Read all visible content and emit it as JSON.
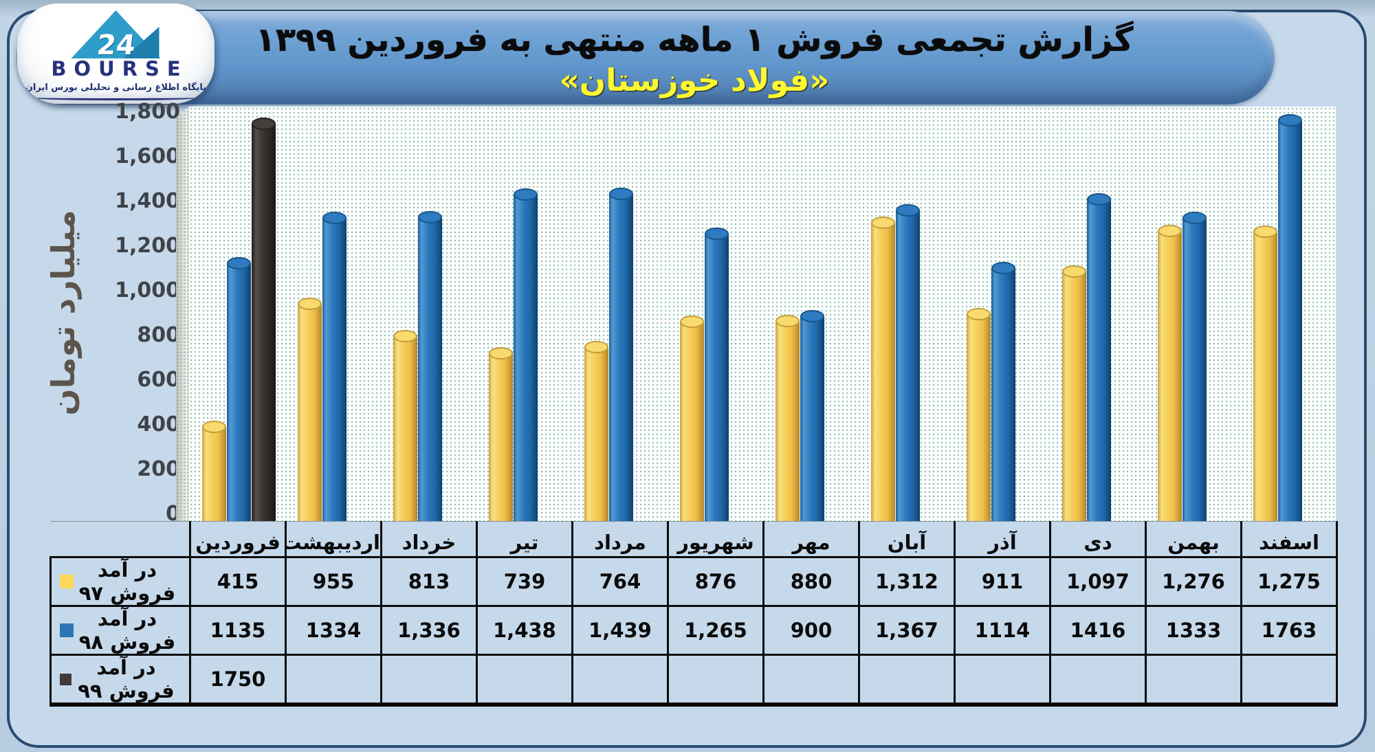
{
  "header": {
    "title_line1": "گزارش تجمعی فروش ۱ ماهه منتهی به فروردین ۱۳۹۹",
    "title_line2": "«فولاد خوزستان»"
  },
  "logo": {
    "brand": "BOURSE",
    "number": "24",
    "tagline": "پایگاه اطلاع رسانی و تحلیلی بورس ایران"
  },
  "chart_data": {
    "type": "bar",
    "style": "3d-cylinder",
    "title": "گزارش تجمعی فروش ۱ ماهه منتهی به فروردین ۱۳۹۹ «فولاد خوزستان»",
    "xlabel": "",
    "ylabel": "میلیارد تومان",
    "ylim": [
      0,
      1800
    ],
    "y_tick_step": 200,
    "grid": false,
    "legend_position": "table-rows-left",
    "categories": [
      "فروردین",
      "اردیبهشت",
      "خرداد",
      "تیر",
      "مرداد",
      "شهریور",
      "مهر",
      "آبان",
      "آذر",
      "دی",
      "بهمن",
      "اسفند"
    ],
    "y_ticks": [
      {
        "value": 0,
        "label": "0"
      },
      {
        "value": 200,
        "label": "200"
      },
      {
        "value": 400,
        "label": "400"
      },
      {
        "value": 600,
        "label": "600"
      },
      {
        "value": 800,
        "label": "800"
      },
      {
        "value": 1000,
        "label": "1,000"
      },
      {
        "value": 1200,
        "label": "1,200"
      },
      {
        "value": 1400,
        "label": "1,400"
      },
      {
        "value": 1600,
        "label": "1,600"
      },
      {
        "value": 1800,
        "label": "1,800"
      }
    ],
    "series": [
      {
        "name": "در آمد فروش ۹۷",
        "color": "#F5CF58",
        "swatch_color": "#FCD75A",
        "values": [
          415,
          955,
          813,
          739,
          764,
          876,
          880,
          1312,
          911,
          1097,
          1276,
          1275
        ],
        "display": [
          "415",
          "955",
          "813",
          "739",
          "764",
          "876",
          "880",
          "1,312",
          "911",
          "1,097",
          "1,276",
          "1,275"
        ]
      },
      {
        "name": "در آمد فروش ۹۸",
        "color": "#2B79BD",
        "swatch_color": "#2E75B6",
        "values": [
          1135,
          1334,
          1336,
          1438,
          1439,
          1265,
          900,
          1367,
          1114,
          1416,
          1333,
          1763
        ],
        "display": [
          "1135",
          "1334",
          "1,336",
          "1,438",
          "1,439",
          "1,265",
          "900",
          "1,367",
          "1114",
          "1416",
          "1333",
          "1763"
        ]
      },
      {
        "name": "در آمد فروش ۹۹",
        "color": "#3A3431",
        "swatch_color": "#403B38",
        "values": [
          1750,
          null,
          null,
          null,
          null,
          null,
          null,
          null,
          null,
          null,
          null,
          null
        ],
        "display": [
          "1750",
          "",
          "",
          "",
          "",
          "",
          "",
          "",
          "",
          "",
          "",
          ""
        ]
      }
    ]
  }
}
